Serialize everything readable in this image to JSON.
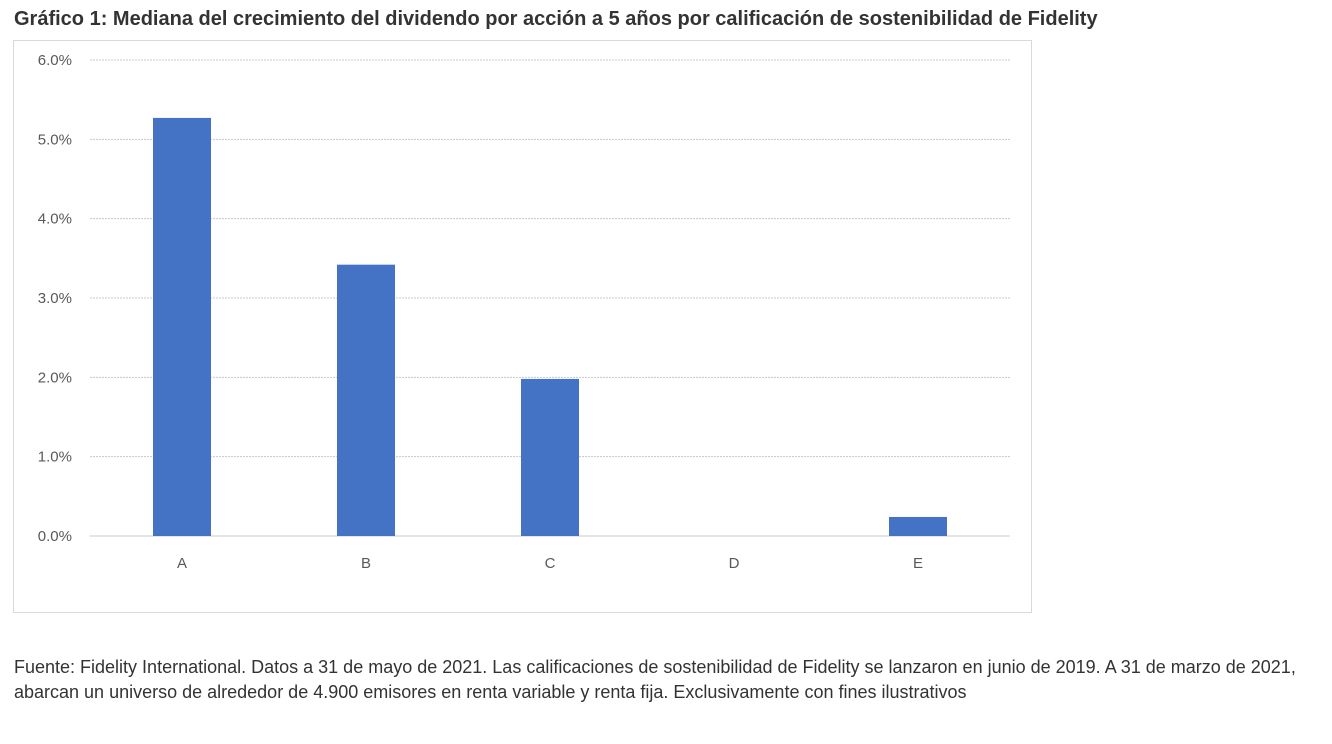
{
  "chart_data": {
    "type": "bar",
    "title": "Gráfico 1: Mediana del crecimiento del dividendo por acción a 5 años por calificación de sostenibilidad de Fidelity",
    "categories": [
      "A",
      "B",
      "C",
      "D",
      "E"
    ],
    "values": [
      5.27,
      3.42,
      1.98,
      0.0,
      0.24
    ],
    "ylim": [
      0,
      6
    ],
    "yticks": [
      "0.0%",
      "1.0%",
      "2.0%",
      "3.0%",
      "4.0%",
      "5.0%",
      "6.0%"
    ],
    "xlabel": "",
    "ylabel": "",
    "grid": true,
    "bar_color": "#4472C4"
  },
  "footnote": "Fuente: Fidelity International. Datos a 31 de mayo de 2021. Las calificaciones de sostenibilidad de Fidelity se lanzaron en junio de 2019. A 31 de marzo de 2021, abarcan un universo de alrededor de 4.900 emisores en renta variable y renta fija. Exclusivamente con fines ilustrativos"
}
